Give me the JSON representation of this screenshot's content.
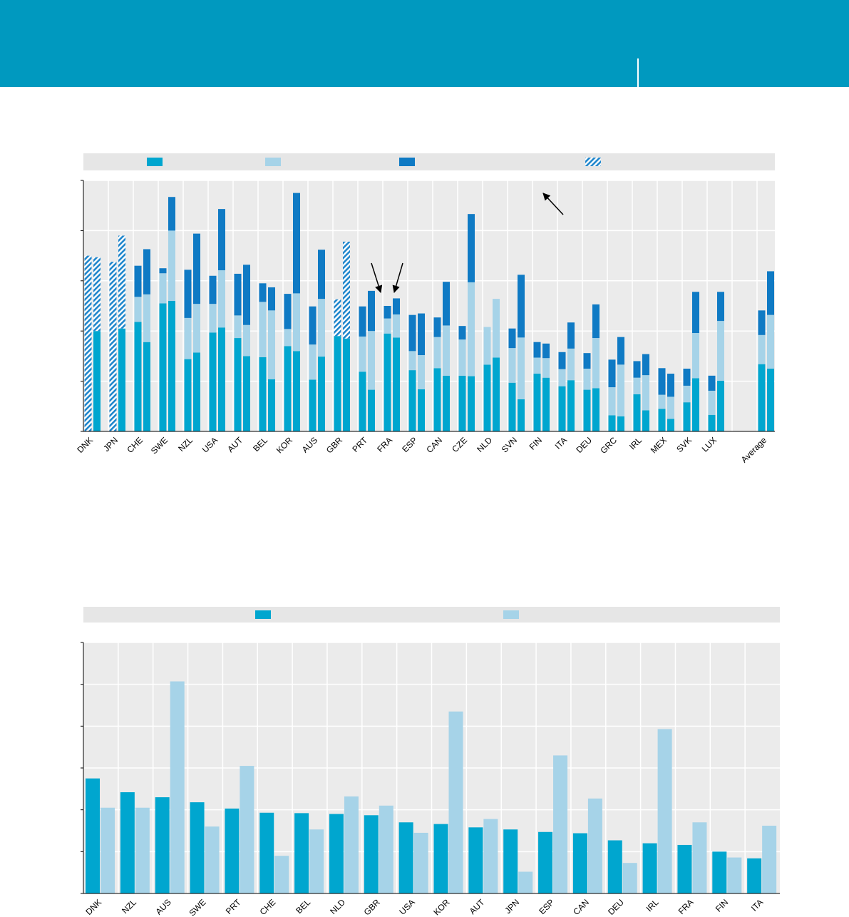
{
  "colors": {
    "banner": "#0099bf",
    "s1": "#00a6cf",
    "s2": "#a6d3e8",
    "s3": "#0f7ac4",
    "hatch": "#1f86cc",
    "panel_bg": "#ebebeb",
    "legend_bg": "#e6e6e6",
    "grid": "#ffffff"
  },
  "chart_data": [
    {
      "type": "bar",
      "stacked": true,
      "title": "",
      "xlabel": "",
      "ylabel": "",
      "ylim": [
        0,
        5
      ],
      "grid": true,
      "legend_position": "top",
      "series": [
        {
          "color": "#00a6cf"
        },
        {
          "color": "#a6d3e8"
        },
        {
          "color": "#0f7ac4"
        },
        {
          "color": "#1f86cc",
          "pattern": "hatched"
        }
      ],
      "categories": [
        "DNK",
        "JPN",
        "CHE",
        "SWE",
        "NZL",
        "USA",
        "AUT",
        "BEL",
        "KOR",
        "AUS",
        "GBR",
        "PRT",
        "FRA",
        "ESP",
        "CAN",
        "CZE",
        "NLD",
        "SVN",
        "FIN",
        "ITA",
        "DEU",
        "GRC",
        "IRL",
        "MEX",
        "SVK",
        "LUX",
        "Average"
      ],
      "values": [
        [
          [
            0,
            0,
            0,
            3.5
          ],
          [
            2.0,
            0,
            0,
            1.47
          ]
        ],
        [
          [
            0,
            0,
            0,
            3.38
          ],
          [
            2.05,
            0,
            0,
            1.85
          ]
        ],
        [
          [
            2.18,
            0.5,
            0.62,
            0
          ],
          [
            1.78,
            0.95,
            0.9,
            0
          ]
        ],
        [
          [
            2.55,
            0.6,
            0.1,
            0
          ],
          [
            2.6,
            1.4,
            0.67,
            0
          ]
        ],
        [
          [
            1.44,
            0.82,
            0.96,
            0
          ],
          [
            1.57,
            0.97,
            1.4,
            0
          ]
        ],
        [
          [
            1.97,
            0.57,
            0.56,
            0
          ],
          [
            2.07,
            1.14,
            1.22,
            0
          ]
        ],
        [
          [
            1.86,
            0.45,
            0.83,
            0
          ],
          [
            1.5,
            0.62,
            1.2,
            0
          ]
        ],
        [
          [
            1.48,
            1.1,
            0.37,
            0
          ],
          [
            1.04,
            1.37,
            0.46,
            0
          ]
        ],
        [
          [
            1.7,
            0.34,
            0.7,
            0
          ],
          [
            1.6,
            1.15,
            2.0,
            0
          ]
        ],
        [
          [
            1.03,
            0.7,
            0.76,
            0
          ],
          [
            1.49,
            1.15,
            0.98,
            0
          ]
        ],
        [
          [
            1.9,
            0,
            0,
            0.73
          ],
          [
            1.85,
            0,
            0,
            1.93
          ]
        ],
        [
          [
            1.19,
            0.7,
            0.6,
            0
          ],
          [
            0.83,
            1.17,
            0.8,
            0
          ]
        ],
        [
          [
            1.95,
            0.3,
            0.25,
            0
          ],
          [
            1.87,
            0.46,
            0.32,
            0
          ]
        ],
        [
          [
            1.22,
            0.38,
            0.72,
            0
          ],
          [
            0.84,
            0.68,
            0.83,
            0
          ]
        ],
        [
          [
            1.26,
            0.62,
            0.39,
            0
          ],
          [
            1.11,
            1.0,
            0.87,
            0
          ]
        ],
        [
          [
            1.11,
            0.72,
            0.27,
            0
          ],
          [
            1.1,
            1.87,
            1.36,
            0
          ]
        ],
        [
          [
            1.33,
            0.75,
            0,
            0
          ],
          [
            1.47,
            1.17,
            0,
            0
          ]
        ],
        [
          [
            0.97,
            0.69,
            0.39,
            0
          ],
          [
            0.64,
            1.23,
            1.25,
            0
          ]
        ],
        [
          [
            1.15,
            0.32,
            0.31,
            0
          ],
          [
            1.07,
            0.39,
            0.29,
            0
          ]
        ],
        [
          [
            0.9,
            0.34,
            0.34,
            0
          ],
          [
            1.02,
            0.63,
            0.52,
            0
          ]
        ],
        [
          [
            0.83,
            0.42,
            0.31,
            0
          ],
          [
            0.86,
            1.0,
            0.67,
            0
          ]
        ],
        [
          [
            0.32,
            0.56,
            0.55,
            0
          ],
          [
            0.3,
            1.03,
            0.55,
            0
          ]
        ],
        [
          [
            0.74,
            0.33,
            0.33,
            0
          ],
          [
            0.42,
            0.7,
            0.42,
            0
          ]
        ],
        [
          [
            0.45,
            0.28,
            0.53,
            0
          ],
          [
            0.25,
            0.44,
            0.46,
            0
          ]
        ],
        [
          [
            0.58,
            0.33,
            0.34,
            0
          ],
          [
            1.06,
            0.9,
            0.82,
            0
          ]
        ],
        [
          [
            0.33,
            0.48,
            0.3,
            0
          ],
          [
            1.01,
            1.19,
            0.58,
            0
          ]
        ],
        [
          [
            1.34,
            0.58,
            0.49,
            0
          ],
          [
            1.25,
            1.07,
            0.87,
            0
          ]
        ]
      ],
      "annotations": [
        "arrow",
        "arrow",
        "arrow"
      ]
    },
    {
      "type": "bar",
      "title": "",
      "xlabel": "",
      "ylabel": "",
      "ylim": [
        0,
        6
      ],
      "grid": true,
      "legend_position": "top",
      "series": [
        {
          "color": "#00a6cf"
        },
        {
          "color": "#a6d3e8"
        }
      ],
      "categories": [
        "DNK",
        "NZL",
        "AUS",
        "SWE",
        "PRT",
        "CHE",
        "BEL",
        "NLD",
        "GBR",
        "USA",
        "KOR",
        "AUT",
        "JPN",
        "ESP",
        "CAN",
        "DEU",
        "IRL",
        "FRA",
        "FIN",
        "ITA"
      ],
      "values": [
        [
          2.75,
          2.05
        ],
        [
          2.42,
          2.05
        ],
        [
          2.3,
          5.07
        ],
        [
          2.18,
          1.6
        ],
        [
          2.03,
          3.05
        ],
        [
          1.93,
          0.9
        ],
        [
          1.92,
          1.53
        ],
        [
          1.9,
          2.32
        ],
        [
          1.87,
          2.1
        ],
        [
          1.7,
          1.45
        ],
        [
          1.66,
          4.35
        ],
        [
          1.58,
          1.78
        ],
        [
          1.53,
          0.52
        ],
        [
          1.47,
          3.3
        ],
        [
          1.44,
          2.27
        ],
        [
          1.27,
          0.73
        ],
        [
          1.2,
          3.93
        ],
        [
          1.16,
          1.7
        ],
        [
          1.0,
          0.86
        ],
        [
          0.84,
          1.62
        ]
      ]
    }
  ]
}
